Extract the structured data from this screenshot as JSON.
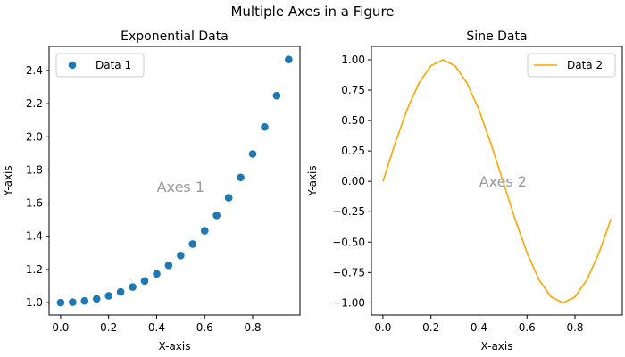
{
  "figure_title": "Multiple Axes in a Figure",
  "chart_data": [
    {
      "type": "scatter",
      "title": "Exponential Data",
      "xlabel": "X-axis",
      "ylabel": "Y-axis",
      "xlim": [
        -0.048,
        0.997
      ],
      "ylim": [
        0.925,
        2.545
      ],
      "xticks": [
        0.0,
        0.2,
        0.4,
        0.6,
        0.8
      ],
      "xtick_labels": [
        "0.0",
        "0.2",
        "0.4",
        "0.6",
        "0.8"
      ],
      "yticks": [
        1.0,
        1.2,
        1.4,
        1.6,
        1.8,
        2.0,
        2.2,
        2.4
      ],
      "ytick_labels": [
        "1.0",
        "1.2",
        "1.4",
        "1.6",
        "1.8",
        "2.0",
        "2.2",
        "2.4"
      ],
      "grid": false,
      "legend_position": "top-left",
      "annotation": "Axes 1",
      "annotation_at": [
        0.5,
        1.7
      ],
      "series": [
        {
          "name": "Data 1",
          "color": "#1f77b4",
          "x": [
            0,
            0.05,
            0.1,
            0.15,
            0.2,
            0.25,
            0.3,
            0.35,
            0.4,
            0.45,
            0.5,
            0.55,
            0.6,
            0.65,
            0.7,
            0.75,
            0.8,
            0.85,
            0.9,
            0.95
          ],
          "y": [
            1.0,
            1.0025,
            1.0101,
            1.0228,
            1.0408,
            1.0645,
            1.0942,
            1.1303,
            1.1735,
            1.2244,
            1.284,
            1.3532,
            1.4333,
            1.5258,
            1.6323,
            1.7551,
            1.8965,
            2.0596,
            2.2479,
            2.4659
          ]
        }
      ]
    },
    {
      "type": "line",
      "title": "Sine Data",
      "xlabel": "X-axis",
      "ylabel": "Y-axis",
      "xlim": [
        -0.048,
        0.997
      ],
      "ylim": [
        -1.1,
        1.11
      ],
      "xticks": [
        0.0,
        0.2,
        0.4,
        0.6,
        0.8
      ],
      "xtick_labels": [
        "0.0",
        "0.2",
        "0.4",
        "0.6",
        "0.8"
      ],
      "yticks": [
        -1.0,
        -0.75,
        -0.5,
        -0.25,
        0.0,
        0.25,
        0.5,
        0.75,
        1.0
      ],
      "ytick_labels": [
        "−1.00",
        "−0.75",
        "−0.50",
        "−0.25",
        "0.00",
        "0.25",
        "0.50",
        "0.75",
        "1.00"
      ],
      "grid": false,
      "legend_position": "top-right",
      "annotation": "Axes 2",
      "annotation_at": [
        0.5,
        0.0
      ],
      "series": [
        {
          "name": "Data 2",
          "color": "#ffa500",
          "x": [
            0,
            0.05,
            0.1,
            0.15,
            0.2,
            0.25,
            0.3,
            0.35,
            0.4,
            0.45,
            0.5,
            0.55,
            0.6,
            0.65,
            0.7,
            0.75,
            0.8,
            0.85,
            0.9,
            0.95
          ],
          "y": [
            0,
            0.309,
            0.588,
            0.809,
            0.951,
            1.0,
            0.951,
            0.809,
            0.588,
            0.309,
            0,
            -0.309,
            -0.588,
            -0.809,
            -0.951,
            -1.0,
            -0.951,
            -0.809,
            -0.588,
            -0.309
          ]
        }
      ]
    }
  ]
}
